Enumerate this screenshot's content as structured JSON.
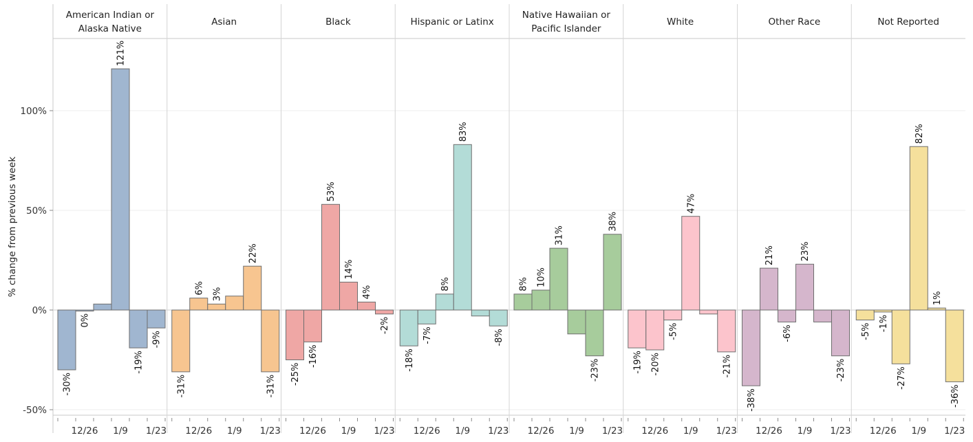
{
  "chart_data": {
    "type": "bar",
    "ylabel": "% change from previous week",
    "yticks": [
      "100%",
      "50%",
      "0%",
      "-50%"
    ],
    "ytick_values": [
      100,
      50,
      0,
      -50
    ],
    "ylim": [
      -52,
      128
    ],
    "grid": true,
    "x_tick_labels": [
      "12/26",
      "1/9",
      "1/23"
    ],
    "panels": [
      {
        "name_lines": [
          "American Indian or",
          "Alaska Native"
        ],
        "color": "#a0b6d0",
        "values": [
          -30,
          -0.3,
          3,
          121,
          -19,
          -9
        ],
        "labels": [
          "-30%",
          "0%",
          "",
          "121%",
          "-19%",
          "-9%"
        ]
      },
      {
        "name_lines": [
          "Asian"
        ],
        "color": "#f7c590",
        "values": [
          -31,
          6,
          3,
          7,
          22,
          -31
        ],
        "labels": [
          "-31%",
          "6%",
          "3%",
          "",
          "22%",
          "-31%"
        ]
      },
      {
        "name_lines": [
          "Black"
        ],
        "color": "#efa7a5",
        "values": [
          -25,
          -16,
          53,
          14,
          4,
          -2
        ],
        "labels": [
          "-25%",
          "-16%",
          "53%",
          "14%",
          "4%",
          "-2%"
        ]
      },
      {
        "name_lines": [
          "Hispanic or Latinx"
        ],
        "color": "#b3dcd7",
        "values": [
          -18,
          -7,
          8,
          83,
          -3,
          -8
        ],
        "labels": [
          "-18%",
          "-7%",
          "8%",
          "83%",
          "",
          "-8%"
        ]
      },
      {
        "name_lines": [
          "Native Hawaiian or",
          "Pacific Islander"
        ],
        "color": "#a7cc9c",
        "values": [
          8,
          10,
          31,
          -12,
          -23,
          38
        ],
        "labels": [
          "8%",
          "10%",
          "31%",
          "",
          "-23%",
          "38%"
        ]
      },
      {
        "name_lines": [
          "White"
        ],
        "color": "#fcc4cc",
        "values": [
          -19,
          -20,
          -5,
          47,
          -2,
          -21
        ],
        "labels": [
          "-19%",
          "-20%",
          "-5%",
          "47%",
          "",
          "-21%"
        ]
      },
      {
        "name_lines": [
          "Other Race"
        ],
        "color": "#d5b6cc",
        "values": [
          -38,
          21,
          -6,
          23,
          -6,
          -23
        ],
        "labels": [
          "-38%",
          "21%",
          "-6%",
          "23%",
          "",
          "-23%"
        ]
      },
      {
        "name_lines": [
          "Not Reported"
        ],
        "color": "#f5e09c",
        "values": [
          -5,
          -1,
          -27,
          82,
          1,
          -36
        ],
        "labels": [
          "-5%",
          "-1%",
          "-27%",
          "82%",
          "1%",
          "-36%"
        ]
      }
    ]
  }
}
